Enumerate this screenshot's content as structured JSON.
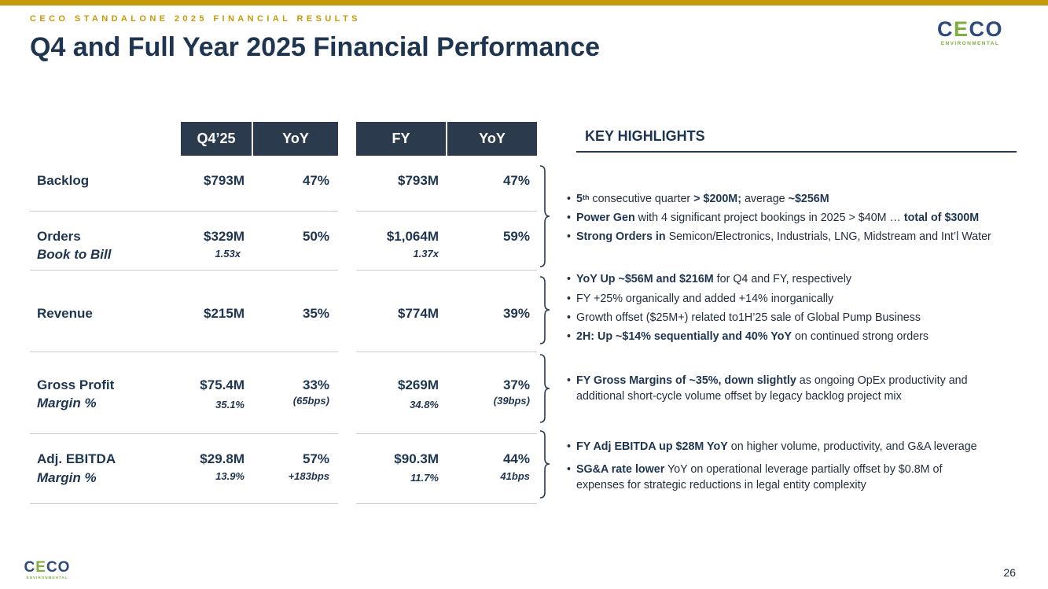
{
  "header": {
    "eyebrow": "CECO STANDALONE 2025 FINANCIAL RESULTS",
    "title": "Q4 and Full Year 2025 Financial Performance"
  },
  "logo": {
    "part1": "C",
    "part2": "E",
    "part3": "CO",
    "subtitle": "ENVIRONMENTAL"
  },
  "table": {
    "columns": [
      "Q4’25",
      "YoY",
      "FY",
      "YoY"
    ],
    "rows": [
      {
        "label": "Backlog",
        "sublabel": "",
        "q4": "$793M",
        "q4_sub": "",
        "q4_yoy": "47%",
        "q4_yoy_sub": "",
        "fy": "$793M",
        "fy_sub": "",
        "fy_yoy": "47%",
        "fy_yoy_sub": ""
      },
      {
        "label": "Orders",
        "sublabel": "Book to Bill",
        "q4": "$329M",
        "q4_sub": "1.53x",
        "q4_yoy": "50%",
        "q4_yoy_sub": "",
        "fy": "$1,064M",
        "fy_sub": "1.37x",
        "fy_yoy": "59%",
        "fy_yoy_sub": ""
      },
      {
        "label": "Revenue",
        "sublabel": "",
        "q4": "$215M",
        "q4_sub": "",
        "q4_yoy": "35%",
        "q4_yoy_sub": "",
        "fy": "$774M",
        "fy_sub": "",
        "fy_yoy": "39%",
        "fy_yoy_sub": ""
      },
      {
        "label": "Gross Profit",
        "sublabel": "Margin %",
        "q4": "$75.4M",
        "q4_sub": "35.1%",
        "q4_yoy": "33%",
        "q4_yoy_sub": "(65bps)",
        "fy": "$269M",
        "fy_sub": "34.8%",
        "fy_yoy": "37%",
        "fy_yoy_sub": "(39bps)"
      },
      {
        "label": "Adj. EBITDA",
        "sublabel": "Margin %",
        "q4": "$29.8M",
        "q4_sub": "13.9%",
        "q4_yoy": "57%",
        "q4_yoy_sub": "+183bps",
        "fy": "$90.3M",
        "fy_sub": "11.7%",
        "fy_yoy": "44%",
        "fy_yoy_sub": "41bps"
      }
    ]
  },
  "highlights": {
    "title": "KEY HIGHLIGHTS",
    "bullet_char": "•",
    "b1": {
      "num": "5",
      "sup": "th",
      "t1": " consecutive quarter ",
      "b1": "> $200M;",
      "t2": " average ",
      "b2": "~$256M"
    },
    "b2": {
      "b1": "Power Gen",
      "t1": " with 4 significant project bookings in 2025 > $40M … ",
      "b2": "total of $300M"
    },
    "b3": {
      "b1": "Strong Orders in",
      "t1": " Semicon/Electronics, Industrials, LNG, Midstream and Int’l Water"
    },
    "b4": {
      "b1": "YoY Up ~$56M and $216M",
      "t1": " for Q4 and FY, respectively"
    },
    "b5": {
      "t1": "FY +25% organically and added +14% inorganically"
    },
    "b6": {
      "t1": "Growth offset ($25M+) related to1H’25 sale of Global Pump Business"
    },
    "b7": {
      "b1": "2H: Up ~$14% sequentially and 40% YoY",
      "t1": " on continued strong orders"
    },
    "b8": {
      "b1": "FY Gross Margins of ~35%, down slightly",
      "t1": " as ongoing OpEx productivity and",
      "t2": "additional short-cycle volume offset by legacy backlog project mix"
    },
    "b9": {
      "b1": "FY Adj EBITDA up $28M YoY",
      "t1": " on higher volume, productivity, and G&A leverage"
    },
    "b10": {
      "b1": "SG&A rate lower",
      "t1": " YoY on operational leverage partially offset by $0.8M of",
      "t2": "expenses for strategic reductions in legal entity complexity"
    }
  },
  "footer": {
    "page_number": "26"
  },
  "colors": {
    "gold": "#c59a0a",
    "navy": "#1e3552",
    "header_fill": "#2b3a4d",
    "logo_blue": "#2a4a80",
    "logo_green": "#7fae3c"
  }
}
